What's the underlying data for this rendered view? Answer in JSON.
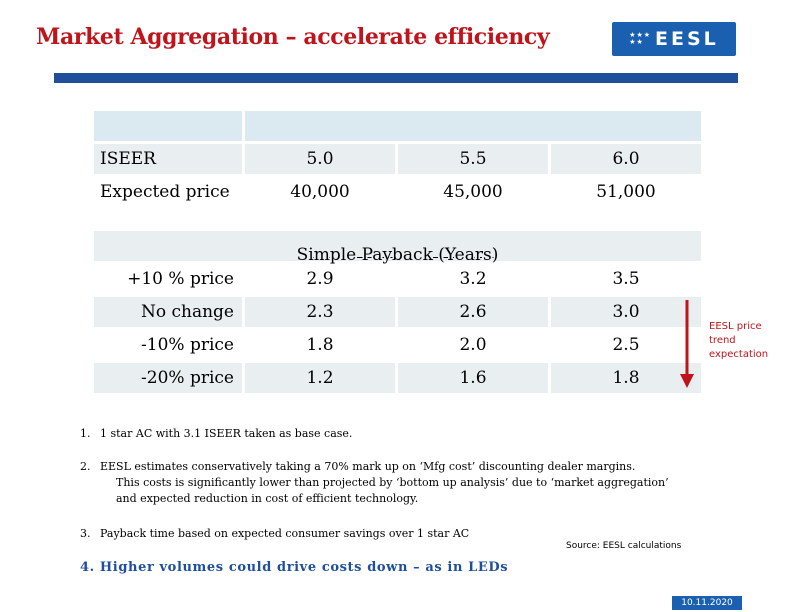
{
  "header": {
    "title": "Market Aggregation – accelerate efficiency",
    "logo_text": "EESL",
    "date": "10.11.2020",
    "brand_color": "#1b5fb0",
    "title_color": "#c0141c"
  },
  "table": {
    "rows": [
      {
        "label": "ISEER",
        "values": [
          "5.0",
          "5.5",
          "6.0"
        ]
      },
      {
        "label": "Expected price",
        "values": [
          "40,000",
          "45,000",
          "51,000"
        ]
      }
    ],
    "payback_title": "Simple Payback (Years)",
    "payback_rows": [
      {
        "label": "+10 % price",
        "values": [
          "2.9",
          "3.2",
          "3.5"
        ]
      },
      {
        "label": "No change",
        "values": [
          "2.3",
          "2.6",
          "3.0"
        ]
      },
      {
        "label": "-10% price",
        "values": [
          "1.8",
          "2.0",
          "2.5"
        ]
      },
      {
        "label": "-20% price",
        "values": [
          "1.2",
          "1.6",
          "1.8"
        ]
      }
    ]
  },
  "trend_note": "EESL price trend expectation",
  "notes": {
    "n1_num": "1.",
    "n1": "1 star AC with 3.1 ISEER taken as base case.",
    "n2_num": "2.",
    "n2": "EESL estimates conservatively taking a 70% mark up on ‘Mfg cost’ discounting dealer margins.",
    "n2_cont": "This costs is significantly lower than projected by ‘bottom up analysis’ due to ‘market aggregation’ and expected reduction in cost of efficient technology.",
    "n3_num": "3.",
    "n3": "Payback time based on expected consumer savings over 1 star AC",
    "n4_num": "4.",
    "n4": "Higher volumes could drive costs down – as in LEDs"
  },
  "source": "Source: EESL calculations"
}
